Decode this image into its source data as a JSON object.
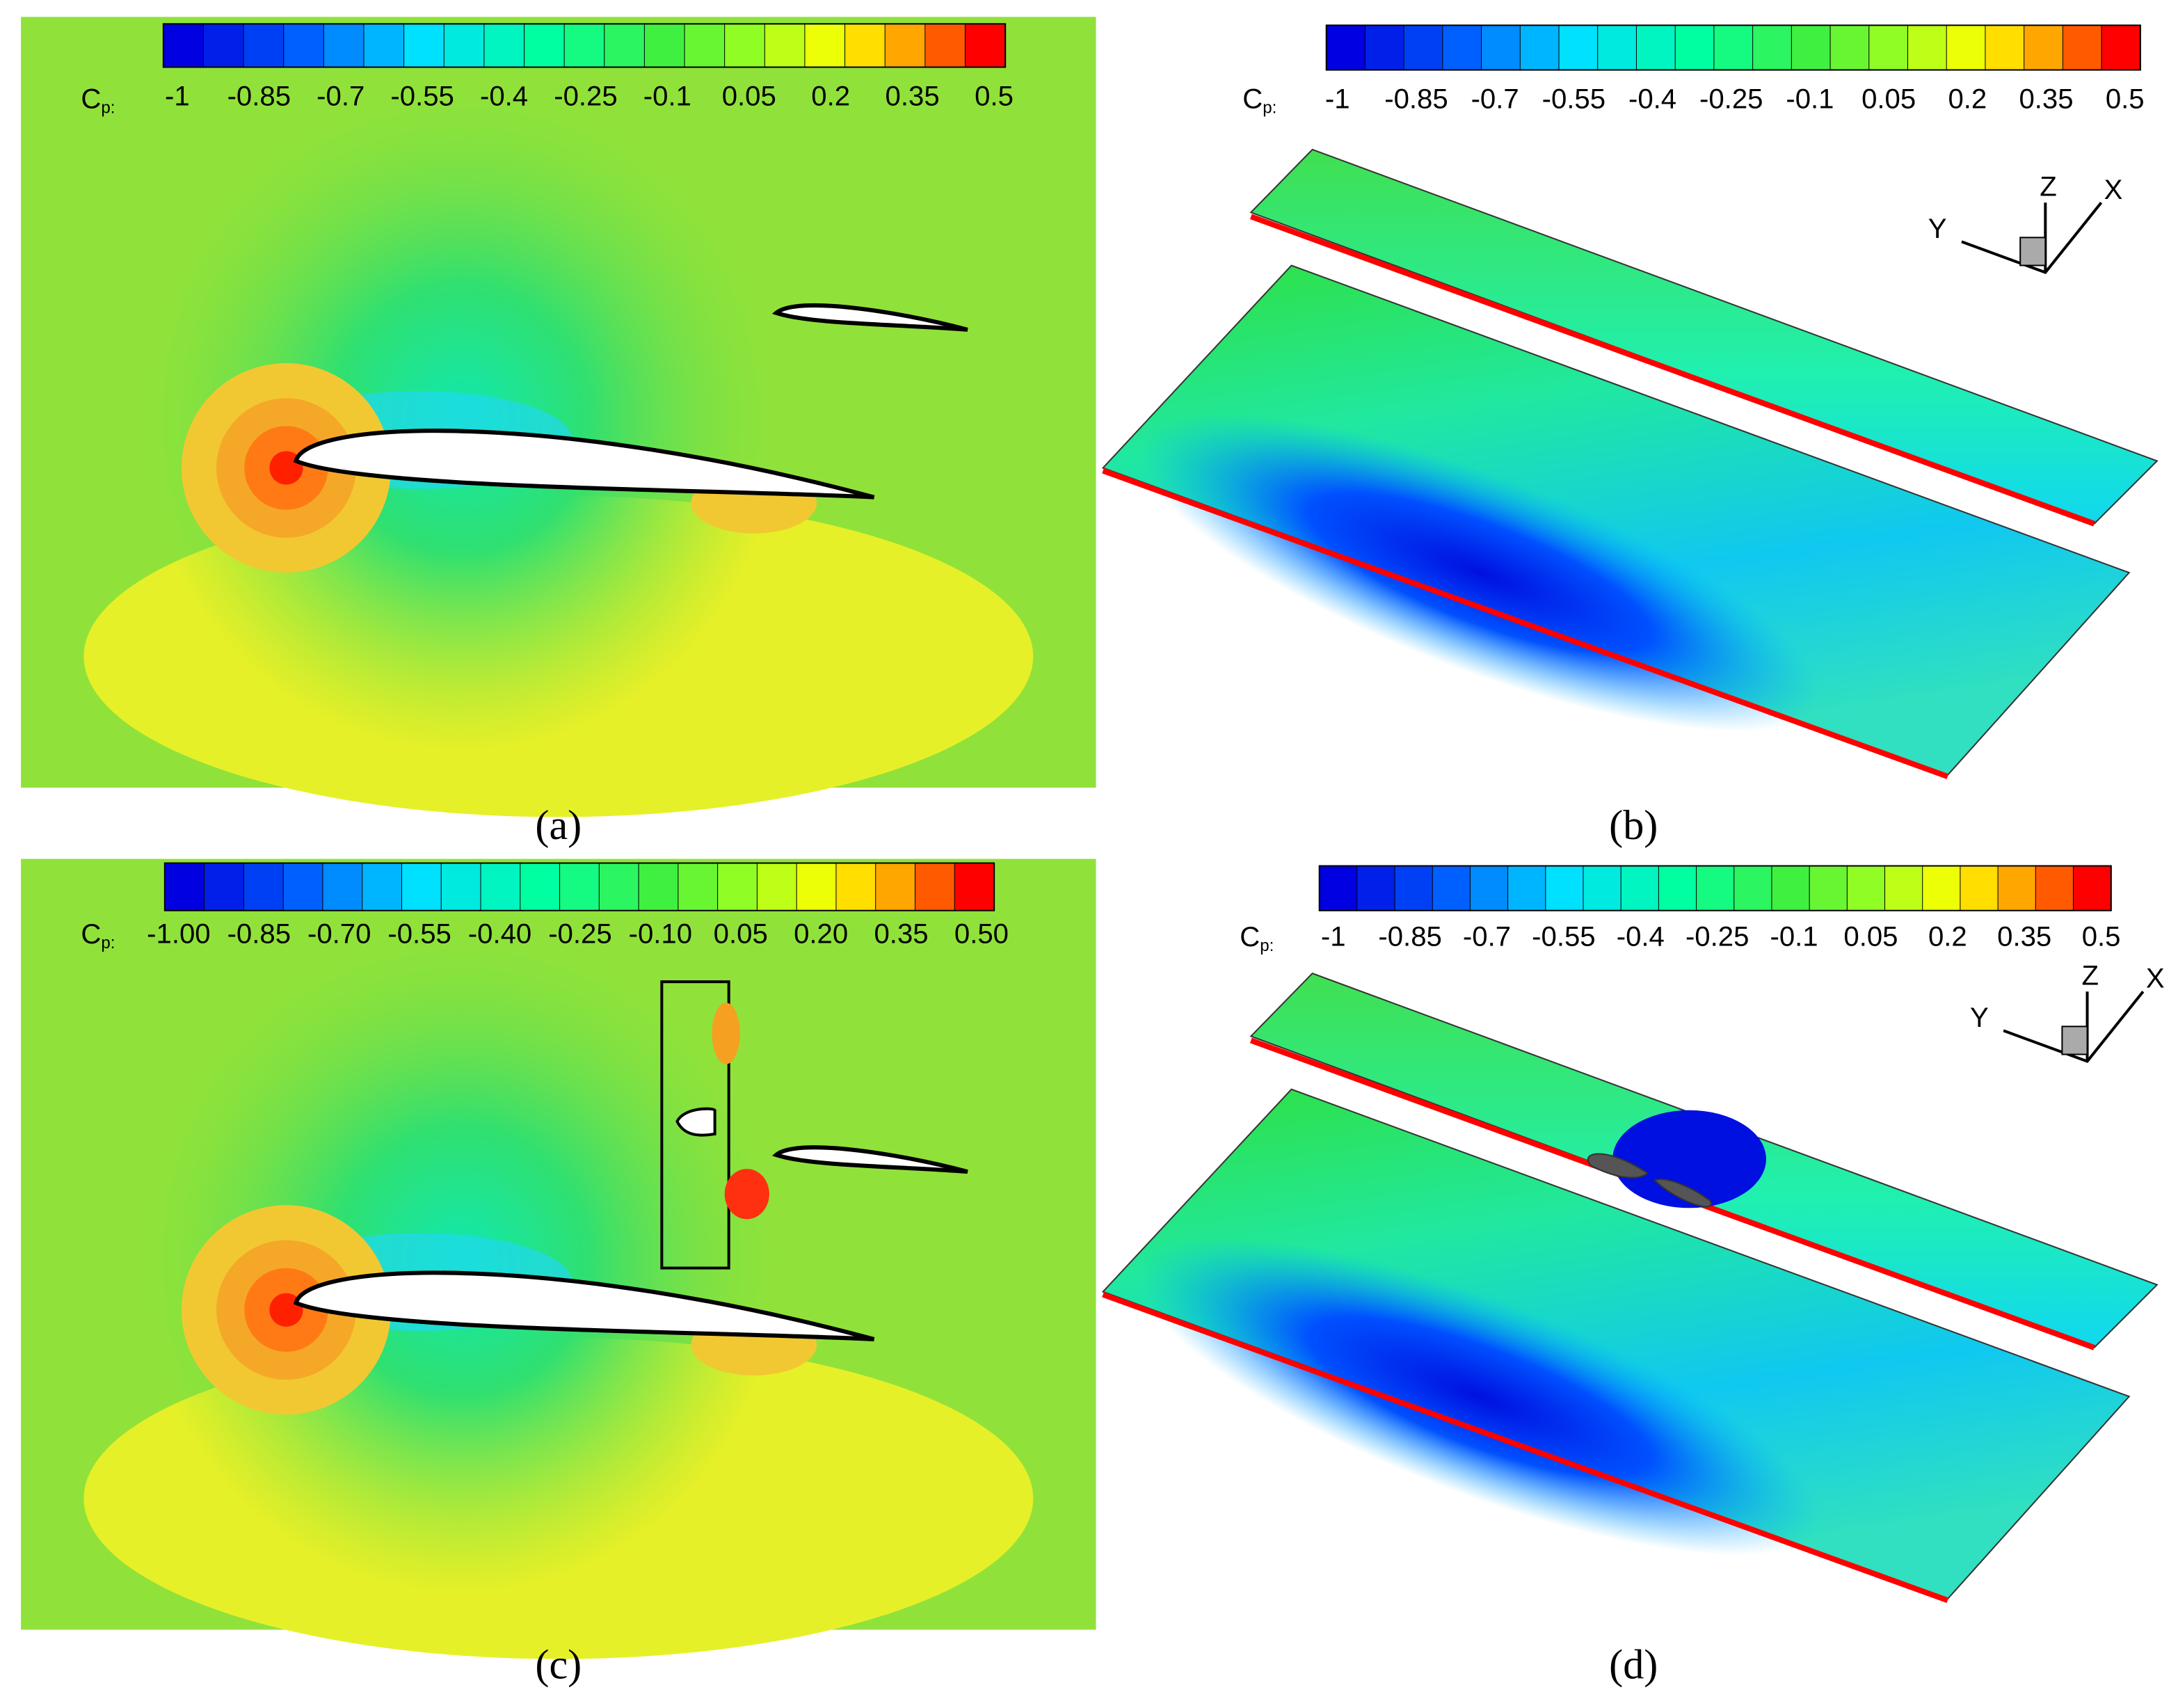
{
  "panels": [
    {
      "label": "(a)",
      "colorbar": {
        "symbol": "C",
        "subscript": "p:",
        "ticks": [
          "-1",
          "-0.85",
          "-0.7",
          "-0.55",
          "-0.4",
          "-0.25",
          "-0.1",
          "0.05",
          "0.2",
          "0.35",
          "0.5"
        ]
      }
    },
    {
      "label": "(b)",
      "colorbar": {
        "symbol": "C",
        "subscript": "p:",
        "ticks": [
          "-1",
          "-0.85",
          "-0.7",
          "-0.55",
          "-0.4",
          "-0.25",
          "-0.1",
          "0.05",
          "0.2",
          "0.35",
          "0.5"
        ]
      },
      "axes": {
        "z": "Z",
        "y": "Y",
        "x": "X"
      }
    },
    {
      "label": "(c)",
      "colorbar": {
        "symbol": "C",
        "subscript": "p:",
        "ticks": [
          "-1.00",
          "-0.85",
          "-0.70",
          "-0.55",
          "-0.40",
          "-0.25",
          "-0.10",
          "0.05",
          "0.20",
          "0.35",
          "0.50"
        ]
      }
    },
    {
      "label": "(d)",
      "colorbar": {
        "symbol": "C",
        "subscript": "p:",
        "ticks": [
          "-1",
          "-0.85",
          "-0.7",
          "-0.55",
          "-0.4",
          "-0.25",
          "-0.1",
          "0.05",
          "0.2",
          "0.35",
          "0.5"
        ]
      },
      "axes": {
        "z": "Z",
        "y": "Y",
        "x": "X"
      }
    }
  ]
}
